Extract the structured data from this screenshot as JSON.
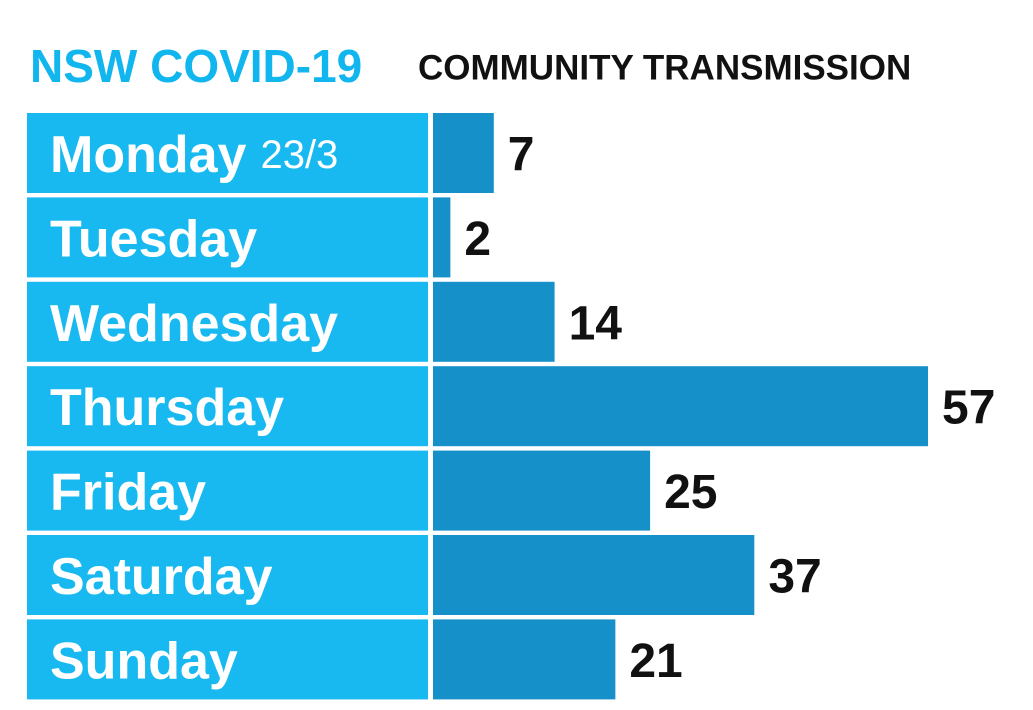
{
  "chart_data": {
    "type": "bar",
    "orientation": "horizontal",
    "title": "NSW COVID-19",
    "subtitle": "COMMUNITY TRANSMISSION",
    "date": "23/3",
    "categories": [
      "Monday",
      "Tuesday",
      "Wednesday",
      "Thursday",
      "Friday",
      "Saturday",
      "Sunday"
    ],
    "values": [
      7,
      2,
      14,
      57,
      25,
      37,
      21
    ],
    "color": "#1590c8",
    "label_color": "#18b9f0",
    "title_color": "#12b6ee"
  }
}
